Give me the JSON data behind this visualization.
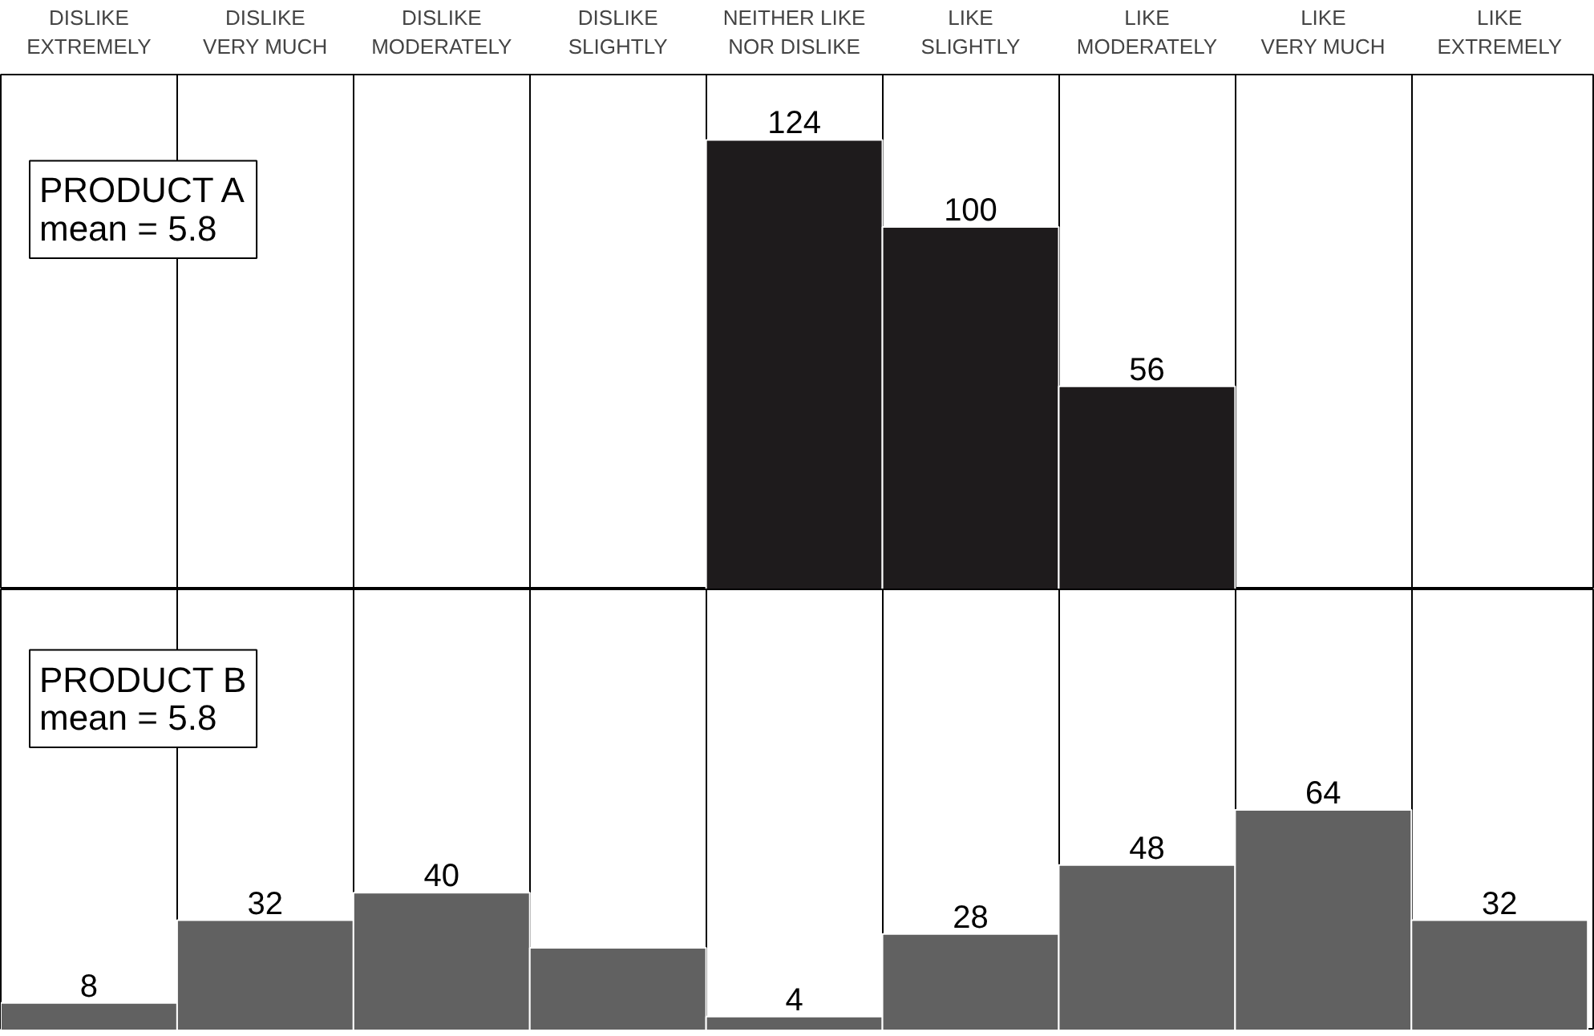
{
  "chart_data": [
    {
      "type": "bar",
      "title": "PRODUCT A",
      "annotations": [
        "mean = 5.8"
      ],
      "categories": [
        "DISLIKE\nEXTREMELY",
        "DISLIKE\nVERY MUCH",
        "DISLIKE\nMODERATELY",
        "DISLIKE\nSLIGHTLY",
        "NEITHER LIKE\nNOR DISLIKE",
        "LIKE\nSLIGHTLY",
        "LIKE\nMODERATELY",
        "LIKE\nVERY MUCH",
        "LIKE\nEXTREMELY"
      ],
      "values": [
        null,
        null,
        null,
        null,
        124,
        100,
        56,
        null,
        null
      ],
      "color": "#1e1b1c",
      "data_labels": true,
      "grid": "x",
      "tick_labels": "x"
    },
    {
      "type": "bar",
      "title": "PRODUCT B",
      "annotations": [
        "mean = 5.8"
      ],
      "categories": [
        null,
        null,
        null,
        null,
        null,
        null,
        null,
        null,
        null
      ],
      "values": [
        8,
        32,
        40,
        24,
        4,
        28,
        48,
        64,
        32
      ],
      "color": "#616161",
      "value_labels": [
        "8",
        "32",
        "40",
        null,
        "4",
        "28",
        "48",
        "64",
        "32"
      ],
      "grid": "x",
      "tick_labels": false
    }
  ]
}
